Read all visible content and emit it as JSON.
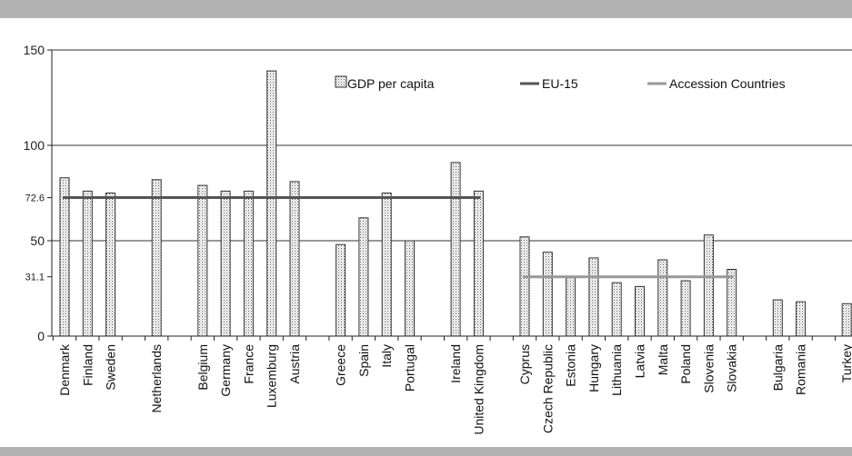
{
  "chart_data": {
    "type": "bar",
    "title": "",
    "xlabel": "",
    "ylabel": "",
    "ylim": [
      0,
      150
    ],
    "yticks": [
      0,
      31.1,
      50,
      72.6,
      100,
      150
    ],
    "grid": true,
    "legend_placement": "top",
    "slots": [
      {
        "label": "Denmark",
        "value": 83
      },
      {
        "label": "Finland",
        "value": 76
      },
      {
        "label": "Sweden",
        "value": 75
      },
      {
        "label": "",
        "value": null
      },
      {
        "label": "Netherlands",
        "value": 82
      },
      {
        "label": "",
        "value": null
      },
      {
        "label": "Belgium",
        "value": 79
      },
      {
        "label": "Germany",
        "value": 76
      },
      {
        "label": "France",
        "value": 76
      },
      {
        "label": "Luxemburg",
        "value": 139
      },
      {
        "label": "Austria",
        "value": 81
      },
      {
        "label": "",
        "value": null
      },
      {
        "label": "Greece",
        "value": 48
      },
      {
        "label": "Spain",
        "value": 62
      },
      {
        "label": "Italy",
        "value": 75
      },
      {
        "label": "Portugal",
        "value": 50
      },
      {
        "label": "",
        "value": null
      },
      {
        "label": "Ireland",
        "value": 91
      },
      {
        "label": "United Kingdom",
        "value": 76
      },
      {
        "label": "",
        "value": null
      },
      {
        "label": "Cyprus",
        "value": 52
      },
      {
        "label": "Czech Republic",
        "value": 44
      },
      {
        "label": "Estonia",
        "value": 31
      },
      {
        "label": "Hungary",
        "value": 41
      },
      {
        "label": "Lithuania",
        "value": 28
      },
      {
        "label": "Latvia",
        "value": 26
      },
      {
        "label": "Malta",
        "value": 40
      },
      {
        "label": "Poland",
        "value": 29
      },
      {
        "label": "Slovenia",
        "value": 53
      },
      {
        "label": "Slovakia",
        "value": 35
      },
      {
        "label": "",
        "value": null
      },
      {
        "label": "Bulgaria",
        "value": 19
      },
      {
        "label": "Romania",
        "value": 18
      },
      {
        "label": "",
        "value": null
      },
      {
        "label": "Turkey",
        "value": 17
      }
    ],
    "series": [
      {
        "name": "GDP per capita",
        "kind": "bar",
        "color": "#e6e6e6"
      },
      {
        "name": "EU-15",
        "kind": "line",
        "value": 72.6,
        "from": "Denmark",
        "to": "United Kingdom",
        "color": "#555555"
      },
      {
        "name": "Accession Countries",
        "kind": "line",
        "value": 31.1,
        "from": "Cyprus",
        "to": "Slovakia",
        "color": "#999999"
      }
    ]
  }
}
